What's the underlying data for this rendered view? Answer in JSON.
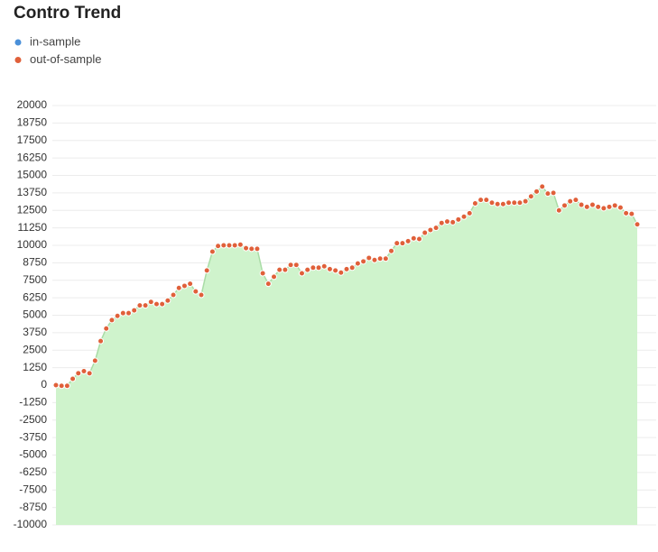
{
  "chart_data": {
    "type": "area",
    "title": "Contro Trend",
    "series": [
      {
        "name": "in-sample",
        "color": "#4a90d9",
        "values": []
      },
      {
        "name": "out-of-sample",
        "color": "#e0603a",
        "fill_color": "#cff3cc",
        "line_color": "#a9dca6",
        "values": [
          0,
          -50,
          -50,
          450,
          850,
          1000,
          850,
          1750,
          3150,
          4050,
          4650,
          4950,
          5150,
          5150,
          5350,
          5700,
          5700,
          5950,
          5800,
          5800,
          6050,
          6450,
          6950,
          7100,
          7250,
          6700,
          6450,
          8200,
          9550,
          9950,
          10000,
          10000,
          10000,
          10050,
          9800,
          9750,
          9750,
          8000,
          7250,
          7750,
          8250,
          8250,
          8600,
          8600,
          8000,
          8250,
          8400,
          8400,
          8500,
          8300,
          8200,
          8050,
          8300,
          8400,
          8700,
          8850,
          9100,
          8950,
          9050,
          9050,
          9600,
          10150,
          10150,
          10300,
          10500,
          10450,
          10900,
          11100,
          11250,
          11600,
          11700,
          11650,
          11850,
          12050,
          12300,
          13000,
          13250,
          13250,
          13050,
          12950,
          12950,
          13050,
          13050,
          13050,
          13150,
          13500,
          13850,
          14200,
          13700,
          13750,
          12500,
          12850,
          13150,
          13250,
          12900,
          12750,
          12900,
          12750,
          12650,
          12750,
          12850,
          12700,
          12300,
          12250,
          11500
        ]
      }
    ],
    "ylim": [
      -10000,
      20000
    ],
    "yticks": [
      -10000,
      -8750,
      -7500,
      -6250,
      -5000,
      -3750,
      -2500,
      -1250,
      0,
      1250,
      2500,
      3750,
      5000,
      6250,
      7500,
      8750,
      10000,
      11250,
      12500,
      13750,
      15000,
      16250,
      17500,
      18750,
      20000
    ],
    "grid": true
  }
}
